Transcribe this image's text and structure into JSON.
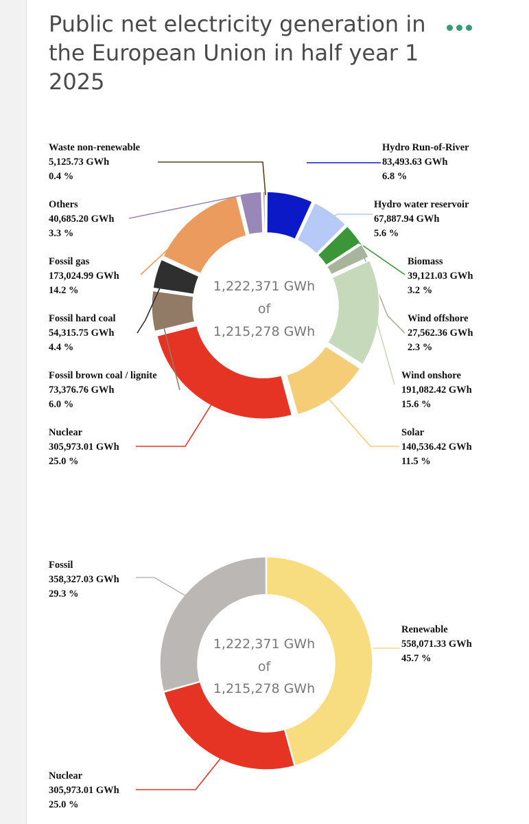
{
  "header": {
    "title": "Public net electricity generation in the European Union in half year 1 2025",
    "menu_icon": "more-dots-icon",
    "accent_color": "#3a9a73"
  },
  "chart_data": [
    {
      "type": "pie",
      "variant": "donut",
      "title": "Public net electricity generation in the European Union in half year 1 2025",
      "center_text": [
        "1,222,371 GWh",
        "of",
        "1,215,278 GWh"
      ],
      "unit": "GWh",
      "slices": [
        {
          "label": "Hydro Run-of-River",
          "value_text": "83,493.63 GWh",
          "percent_text": "6.8 %",
          "value": 83493.63,
          "color": "#0b19c6"
        },
        {
          "label": "Hydro water reservoir",
          "value_text": "67,887.94 GWh",
          "percent_text": "5.6 %",
          "value": 67887.94,
          "color": "#b6c9f7"
        },
        {
          "label": "Biomass",
          "value_text": "39,121.03 GWh",
          "percent_text": "3.2 %",
          "value": 39121.03,
          "color": "#3b963a"
        },
        {
          "label": "Wind offshore",
          "value_text": "27,562.36 GWh",
          "percent_text": "2.3 %",
          "value": 27562.36,
          "color": "#a8b49c"
        },
        {
          "label": "Wind onshore",
          "value_text": "191,082.42 GWh",
          "percent_text": "15.6 %",
          "value": 191082.42,
          "color": "#c7d9bb"
        },
        {
          "label": "Solar",
          "value_text": "140,536.42 GWh",
          "percent_text": "11.5 %",
          "value": 140536.42,
          "color": "#f6cd77"
        },
        {
          "label": "Nuclear",
          "value_text": "305,973.01 GWh",
          "percent_text": "25.0 %",
          "value": 305973.01,
          "color": "#e63424"
        },
        {
          "label": "Fossil brown coal / lignite",
          "value_text": "73,376.76 GWh",
          "percent_text": "6.0 %",
          "value": 73376.76,
          "color": "#927b66"
        },
        {
          "label": "Fossil hard coal",
          "value_text": "54,315.75 GWh",
          "percent_text": "4.4 %",
          "value": 54315.75,
          "color": "#2f2f2f"
        },
        {
          "label": "Fossil gas",
          "value_text": "173,024.99 GWh",
          "percent_text": "14.2 %",
          "value": 173024.99,
          "color": "#ec9b5e"
        },
        {
          "label": "Others",
          "value_text": "40,685.20 GWh",
          "percent_text": "3.3 %",
          "value": 40685.2,
          "color": "#9987b8"
        },
        {
          "label": "Waste non-renewable",
          "value_text": "5,125.73 GWh",
          "percent_text": "0.4 %",
          "value": 5125.73,
          "color": "#5a4318"
        }
      ]
    },
    {
      "type": "pie",
      "variant": "donut",
      "center_text": [
        "1,222,371 GWh",
        "of",
        "1,215,278 GWh"
      ],
      "unit": "GWh",
      "slices": [
        {
          "label": "Renewable",
          "value_text": "558,071.33 GWh",
          "percent_text": "45.7 %",
          "value": 558071.33,
          "color": "#f8dc80"
        },
        {
          "label": "Nuclear",
          "value_text": "305,973.01 GWh",
          "percent_text": "25.0 %",
          "value": 305973.01,
          "color": "#e63424"
        },
        {
          "label": "Fossil",
          "value_text": "358,327.03 GWh",
          "percent_text": "29.3 %",
          "value": 358327.03,
          "color": "#bbb7b4"
        }
      ]
    }
  ]
}
